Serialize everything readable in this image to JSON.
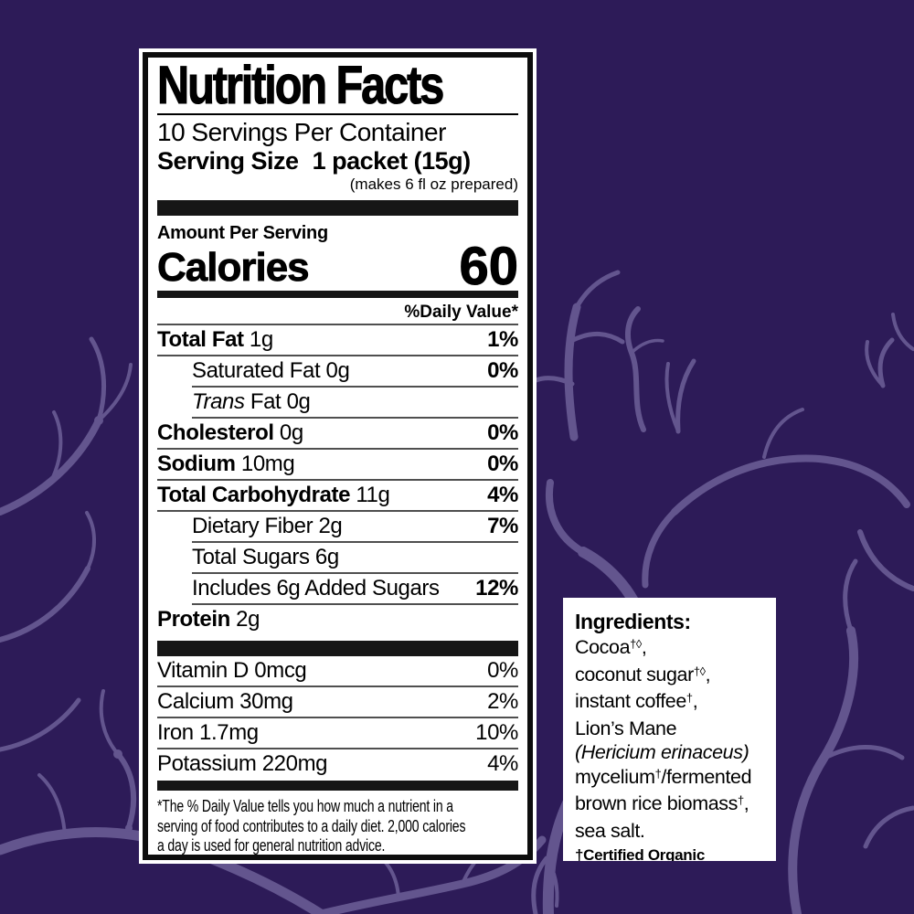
{
  "colors": {
    "background": "#2d1b58",
    "branches": "#63558e",
    "label_background": "#ffffff",
    "label_text": "#000000",
    "bars": "#161616"
  },
  "nutrition_label": {
    "title": "Nutrition Facts",
    "servings_line": "10 Servings Per Container",
    "serving_size_label": "Serving Size",
    "serving_size_value": "1 packet (15g)",
    "serving_note": "(makes 6 fl oz prepared)",
    "amount_per_serving": "Amount Per Serving",
    "calories_label": "Calories",
    "calories_value": "60",
    "daily_value_header": "%Daily Value*",
    "main_rows": [
      {
        "name": "Total Fat",
        "amount": "1g",
        "dv": "1%",
        "name_bold": true,
        "dv_bold": true,
        "indent": false,
        "sep": "full"
      },
      {
        "name": "Saturated Fat",
        "amount": "0g",
        "dv": "0%",
        "name_bold": false,
        "dv_bold": true,
        "indent": true,
        "sep": "full"
      },
      {
        "pre_italic": "Trans",
        "name": " Fat",
        "amount": "0g",
        "dv": "",
        "name_bold": false,
        "dv_bold": false,
        "indent": true,
        "sep": "indent"
      },
      {
        "name": "Cholesterol",
        "amount": "0g",
        "dv": "0%",
        "name_bold": true,
        "dv_bold": true,
        "indent": false,
        "sep": "indent"
      },
      {
        "name": "Sodium",
        "amount": "10mg",
        "dv": "0%",
        "name_bold": true,
        "dv_bold": true,
        "indent": false,
        "sep": "full"
      },
      {
        "name": "Total Carbohydrate",
        "amount": "11g",
        "dv": "4%",
        "name_bold": true,
        "dv_bold": true,
        "indent": false,
        "sep": "full"
      },
      {
        "name": "Dietary Fiber",
        "amount": "2g",
        "dv": "7%",
        "name_bold": false,
        "dv_bold": true,
        "indent": true,
        "sep": "full"
      },
      {
        "name": "Total Sugars",
        "amount": "6g",
        "dv": "",
        "name_bold": false,
        "dv_bold": false,
        "indent": true,
        "sep": "indent"
      },
      {
        "name": "Includes 6g Added Sugars",
        "amount": "",
        "dv": "12%",
        "name_bold": false,
        "dv_bold": true,
        "indent": true,
        "sep": "indent"
      },
      {
        "name": "Protein",
        "amount": "2g",
        "dv": "",
        "name_bold": true,
        "dv_bold": false,
        "indent": false,
        "sep": "indent"
      }
    ],
    "vitamin_rows": [
      {
        "name": "Vitamin D",
        "amount": "0mcg",
        "dv": "0%",
        "name_bold": false,
        "dv_bold": false,
        "indent": false,
        "sep": "none"
      },
      {
        "name": "Calcium",
        "amount": "30mg",
        "dv": "2%",
        "name_bold": false,
        "dv_bold": false,
        "indent": false,
        "sep": "full"
      },
      {
        "name": "Iron",
        "amount": "1.7mg",
        "dv": "10%",
        "name_bold": false,
        "dv_bold": false,
        "indent": false,
        "sep": "full"
      },
      {
        "name": "Potassium",
        "amount": "220mg",
        "dv": "4%",
        "name_bold": false,
        "dv_bold": false,
        "indent": false,
        "sep": "full"
      }
    ],
    "footnote_lines": [
      "*The % Daily Value tells you how much a nutrient in a",
      "serving of food contributes to a daily diet. 2,000 calories",
      "a day is used for general nutrition advice."
    ]
  },
  "ingredients_panel": {
    "heading": "Ingredients:",
    "lines": [
      [
        {
          "t": "Cocoa"
        },
        {
          "t": "†◊",
          "sup": true
        },
        {
          "t": ","
        }
      ],
      [
        {
          "t": "coconut sugar"
        },
        {
          "t": "†◊",
          "sup": true
        },
        {
          "t": ","
        }
      ],
      [
        {
          "t": "instant coffee"
        },
        {
          "t": "†",
          "sup": true
        },
        {
          "t": ","
        }
      ],
      [
        {
          "t": "Lion’s Mane"
        }
      ],
      [
        {
          "t": "(Hericium erinaceus)",
          "i": true
        }
      ],
      [
        {
          "t": "mycelium"
        },
        {
          "t": "†",
          "sup": true
        },
        {
          "t": "/fermented"
        }
      ],
      [
        {
          "t": "brown rice biomass"
        },
        {
          "t": "†",
          "sup": true
        },
        {
          "t": ","
        }
      ],
      [
        {
          "t": "sea salt."
        }
      ]
    ],
    "footnote": "†Certified Organic"
  }
}
